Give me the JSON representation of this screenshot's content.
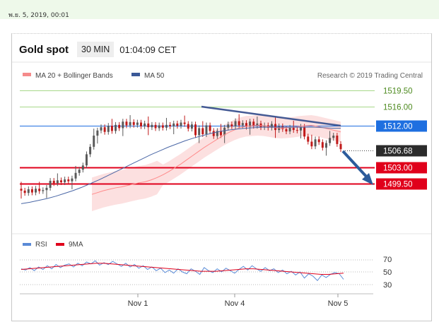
{
  "timestamp": "พ.ย. 5, 2019, 00:01",
  "header": {
    "title": "Gold spot",
    "interval": "30 MIN",
    "time": "01:04:09 CET"
  },
  "legend": {
    "bb": "MA 20 + Bollinger Bands",
    "ma50": "MA 50",
    "credit": "Research © 2019 Trading Central"
  },
  "rsi_legend": {
    "rsi": "RSI",
    "ma": "9MA"
  },
  "colors": {
    "resistance_label": "#1e6fe0",
    "support_label": "#e0001b",
    "current_label": "#2b2b2b",
    "trendline": "#445a94",
    "arrow": "#2c5b9b",
    "candle_up": "#5a5a5a",
    "candle_down": "#c11a1a",
    "bb_band": "#fbdada",
    "ma20": "#ff8a8a",
    "ma50": "#4a67a6",
    "rsi": "#5a8ad6",
    "rsi_ma": "#e0001b",
    "green_line": "#a7d889"
  },
  "chart_data": [
    {
      "type": "candlestick",
      "title": "Gold spot",
      "ylim": [
        1496,
        1523
      ],
      "x_ticks": [
        "Nov 1",
        "Nov 4",
        "Nov 5"
      ],
      "levels": [
        {
          "value": 1519.5,
          "label": "1519.50",
          "kind": "target"
        },
        {
          "value": 1516.0,
          "label": "1516.00",
          "kind": "target"
        },
        {
          "value": 1512.0,
          "label": "1512.00",
          "kind": "resistance"
        },
        {
          "value": 1506.68,
          "label": "1506.68",
          "kind": "current"
        },
        {
          "value": 1503.0,
          "label": "1503.00",
          "kind": "support"
        },
        {
          "value": 1499.5,
          "label": "1499.50",
          "kind": "support"
        }
      ],
      "close": [
        1498.0,
        1497.5,
        1498.3,
        1497.6,
        1498.4,
        1497.9,
        1498.1,
        1498.6,
        1500.1,
        1499.6,
        1500.2,
        1499.8,
        1500.4,
        1500.0,
        1500.6,
        1501.8,
        1502.5,
        1503.4,
        1505.8,
        1507.4,
        1509.8,
        1510.9,
        1511.6,
        1510.6,
        1511.9,
        1510.8,
        1512.1,
        1511.4,
        1512.8,
        1512.0,
        1512.7,
        1512.1,
        1512.6,
        1511.8,
        1512.4,
        1511.6,
        1512.1,
        1511.4,
        1512.0,
        1511.5,
        1512.1,
        1511.8,
        1512.4,
        1511.9,
        1512.6,
        1512.3,
        1511.3,
        1512.2,
        1509.9,
        1511.4,
        1510.1,
        1512.0,
        1510.8,
        1509.7,
        1510.8,
        1509.9,
        1511.5,
        1512.2,
        1511.8,
        1512.9,
        1512.0,
        1512.5,
        1511.7,
        1512.8,
        1511.9,
        1512.4,
        1511.6,
        1512.0,
        1511.5,
        1512.3,
        1511.0,
        1511.8,
        1511.2,
        1510.7,
        1511.5,
        1511.0,
        1510.9,
        1511.7,
        1509.6,
        1508.5,
        1507.5,
        1509.0,
        1508.4,
        1507.2,
        1508.2,
        1509.3,
        1509.8,
        1508.0,
        1506.9
      ],
      "series": [
        {
          "name": "MA 20",
          "values": [
            1497.2,
            1497.6,
            1498.0,
            1498.3,
            1498.6,
            1498.8,
            1499.1,
            1499.4,
            1499.7,
            1499.9,
            1500.3,
            1500.8,
            1501.4,
            1502.1,
            1502.9,
            1503.7,
            1504.6,
            1505.5,
            1506.4,
            1507.3,
            1508.1,
            1508.9,
            1509.7,
            1510.4,
            1511.0,
            1511.5,
            1511.8,
            1511.9,
            1512.0,
            1511.9,
            1511.7,
            1511.5,
            1511.4,
            1511.5,
            1511.6,
            1511.8,
            1511.9,
            1512.0,
            1511.8,
            1511.5,
            1511.2,
            1510.9,
            1510.6
          ]
        },
        {
          "name": "MA 50",
          "values": [
            1495.2,
            1495.5,
            1495.9,
            1496.3,
            1496.8,
            1497.4,
            1498.0,
            1498.7,
            1499.5,
            1500.3,
            1501.2,
            1502.1,
            1503.0,
            1503.9,
            1504.8,
            1505.7,
            1506.5,
            1507.3,
            1508.0,
            1508.7,
            1509.3,
            1509.8,
            1510.3,
            1510.7,
            1511.0,
            1511.2,
            1511.4,
            1511.5,
            1511.6,
            1511.6,
            1511.6,
            1511.6,
            1511.6,
            1511.6,
            1511.6,
            1511.5,
            1511.4,
            1511.4
          ]
        }
      ]
    },
    {
      "type": "line",
      "y_ticks": [
        "70",
        "50",
        "30"
      ],
      "ylim": [
        25,
        80
      ],
      "series": [
        {
          "name": "RSI",
          "values": [
            55,
            53,
            57,
            52,
            58,
            54,
            60,
            55,
            62,
            57,
            61,
            63,
            58,
            64,
            60,
            66,
            63,
            68,
            61,
            65,
            62,
            67,
            63,
            59,
            64,
            58,
            62,
            56,
            60,
            54,
            58,
            52,
            56,
            49,
            53,
            48,
            55,
            50,
            47,
            55,
            51,
            46,
            57,
            52,
            49,
            55,
            50,
            56,
            52,
            48,
            54,
            59,
            53,
            60,
            55,
            51,
            57,
            52,
            55,
            49,
            53,
            47,
            51,
            45,
            50,
            40,
            47,
            43,
            36,
            45,
            41,
            46,
            49,
            47,
            38
          ]
        },
        {
          "name": "9MA",
          "values": [
            54,
            55,
            56,
            57,
            58,
            59,
            60,
            61,
            62,
            63,
            64,
            64,
            63,
            62,
            61,
            60,
            59,
            58,
            57,
            56,
            55,
            54,
            53,
            52,
            51,
            51,
            51,
            52,
            53,
            54,
            55,
            55,
            54,
            53,
            52,
            51,
            50,
            49,
            48,
            47,
            46,
            46,
            47,
            48
          ]
        }
      ]
    }
  ]
}
